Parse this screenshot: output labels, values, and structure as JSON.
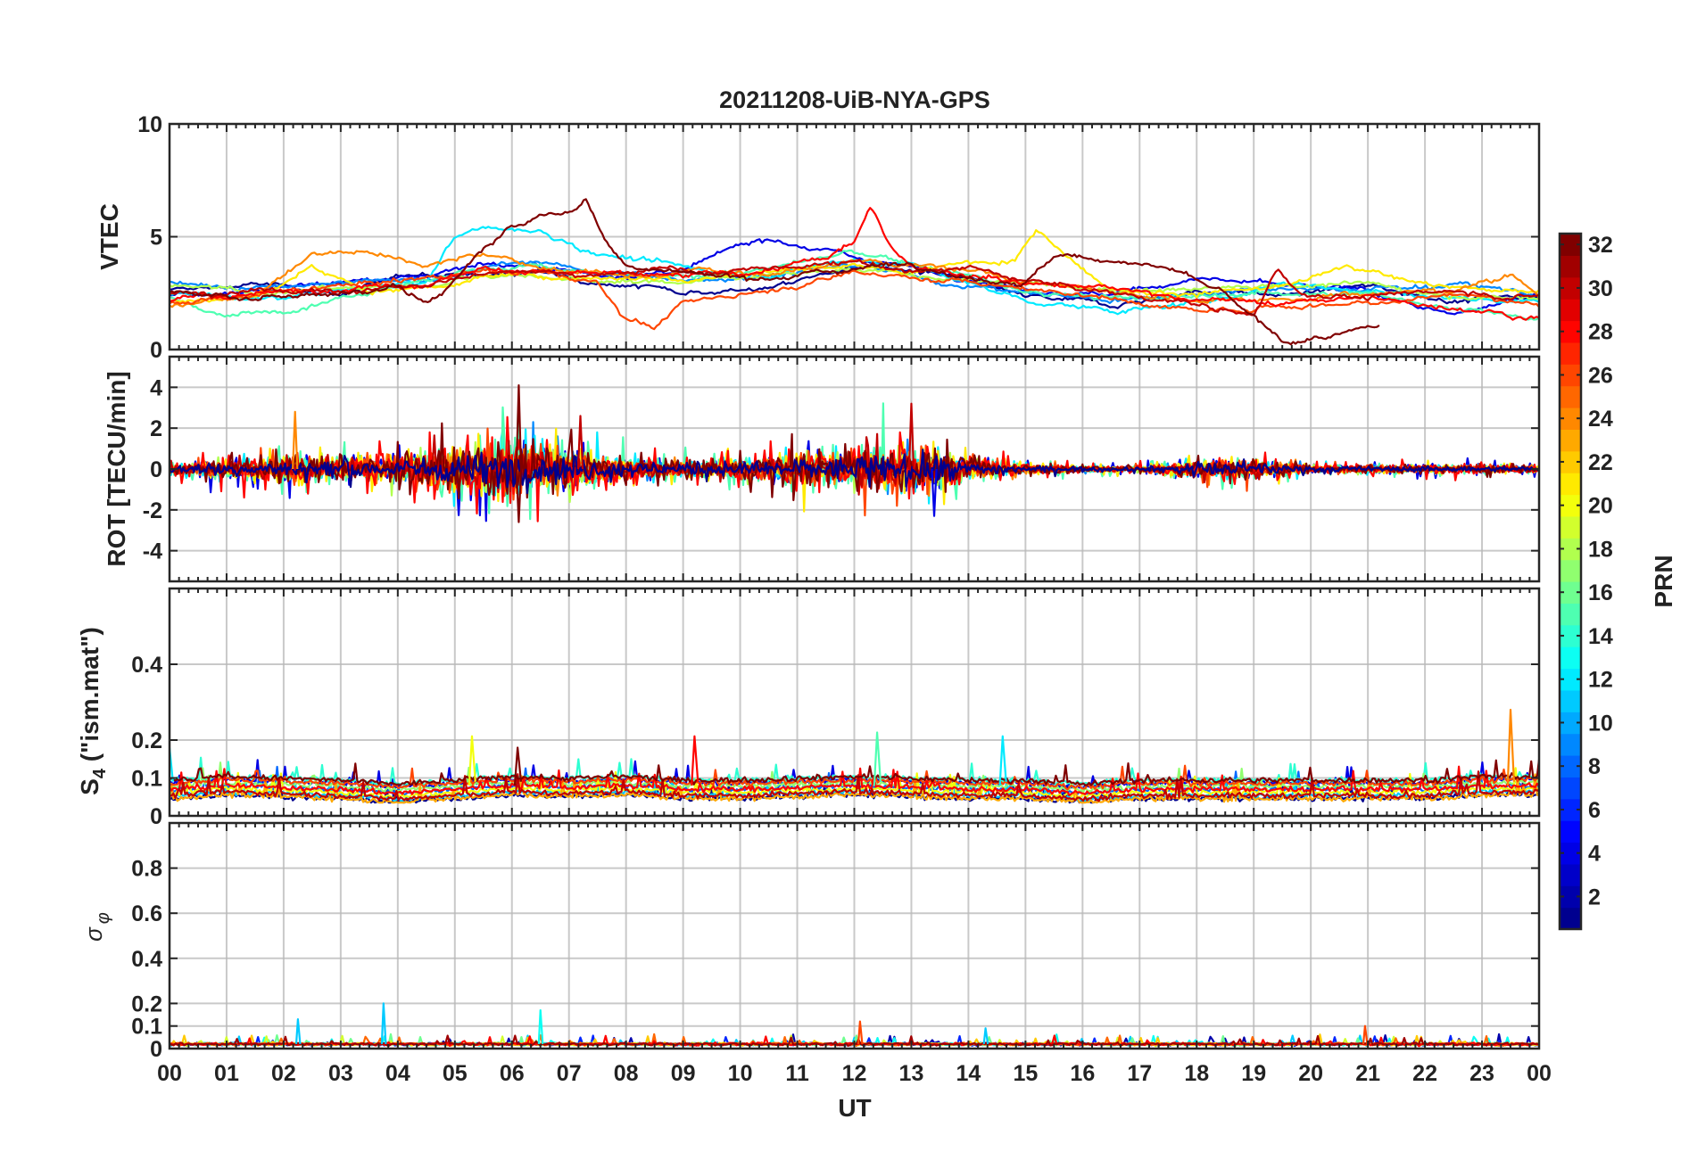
{
  "chart_data": {
    "type": "line",
    "title": "20211208-UiB-NYA-GPS",
    "xlabel": "UT",
    "x_ticks": [
      "00",
      "01",
      "02",
      "03",
      "04",
      "05",
      "06",
      "07",
      "08",
      "09",
      "10",
      "11",
      "12",
      "13",
      "14",
      "15",
      "16",
      "17",
      "18",
      "19",
      "20",
      "21",
      "22",
      "23",
      "00"
    ],
    "xlim_hours": [
      0,
      24
    ],
    "grid": true,
    "colorbar": {
      "label": "PRN",
      "range": [
        1,
        32
      ],
      "tick_labels": [
        "2",
        "4",
        "6",
        "8",
        "10",
        "12",
        "14",
        "16",
        "18",
        "20",
        "22",
        "24",
        "26",
        "28",
        "30",
        "32"
      ],
      "tick_values": [
        2,
        4,
        6,
        8,
        10,
        12,
        14,
        16,
        18,
        20,
        22,
        24,
        26,
        28,
        30,
        32
      ],
      "colormap": "jet",
      "colors": [
        "#00008f",
        "#0000ff",
        "#0080ff",
        "#00ffff",
        "#80ff80",
        "#ffff00",
        "#ff8000",
        "#ff0000",
        "#800000"
      ],
      "placement": "right"
    },
    "panels": [
      {
        "id": "vtec",
        "ylabel": "VTEC",
        "ylim": [
          0,
          10
        ],
        "y_ticks": [
          0,
          5,
          10
        ],
        "y_tick_labels": [
          "0",
          "5",
          "10"
        ],
        "series": [
          {
            "prn": 1,
            "x": [
              0,
              1.5,
              3,
              4.5,
              5.5,
              6.5,
              7.5,
              9,
              10.5,
              12,
              13,
              14,
              15,
              16.5,
              18,
              19.5,
              21,
              22.5,
              24
            ],
            "y": [
              2.6,
              2.9,
              2.5,
              3.4,
              3.3,
              3.4,
              3.1,
              2.6,
              2.7,
              3.7,
              3.5,
              3.0,
              2.3,
              2.0,
              2.6,
              2.4,
              2.8,
              2.2,
              2.4
            ]
          },
          {
            "prn": 4,
            "x": [
              0,
              1.5,
              3,
              4.5,
              5.5,
              6.5,
              7.5,
              9,
              10,
              10.5,
              12,
              13,
              14,
              15,
              16.5,
              18,
              19.5,
              21,
              22.5,
              24
            ],
            "y": [
              2.4,
              2.7,
              3.0,
              3.3,
              3.9,
              3.6,
              3.3,
              3.4,
              4.6,
              5.0,
              4.1,
              3.7,
              3.2,
              2.7,
              2.4,
              3.2,
              2.8,
              2.6,
              1.4,
              2.6
            ]
          },
          {
            "prn": 9,
            "x": [
              0,
              1.5,
              3,
              4.5,
              5.5,
              6.5,
              7.5,
              9,
              10.5,
              12,
              13,
              14,
              15,
              16.5,
              18,
              19.5,
              21,
              22.5,
              24
            ],
            "y": [
              3.0,
              2.7,
              2.9,
              3.1,
              3.6,
              3.9,
              3.4,
              3.1,
              3.3,
              3.7,
              3.3,
              2.8,
              2.5,
              2.2,
              2.5,
              2.6,
              2.7,
              2.9,
              2.4
            ]
          },
          {
            "prn": 12,
            "x": [
              0,
              1.5,
              3,
              4.5,
              5,
              5.5,
              6.5,
              7.5,
              9,
              10.5,
              12,
              13,
              14,
              15,
              16.5,
              18,
              19.5,
              21,
              22.5,
              24
            ],
            "y": [
              2.5,
              2.2,
              2.6,
              3.0,
              5.0,
              5.4,
              5.2,
              4.3,
              3.6,
              3.3,
              4.0,
              3.8,
              2.9,
              2.2,
              1.7,
              2.0,
              3.0,
              2.6,
              2.3,
              2.2
            ]
          },
          {
            "prn": 15,
            "x": [
              0,
              1,
              2,
              3,
              4.5,
              5.5,
              6.5,
              7.5,
              9,
              10.5,
              12,
              13,
              14,
              15,
              16.5,
              18,
              19.5,
              21,
              22.5,
              24
            ],
            "y": [
              2.3,
              1.4,
              1.8,
              2.4,
              3.1,
              3.6,
              3.7,
              3.3,
              3.2,
              3.6,
              4.3,
              3.8,
              3.3,
              2.5,
              2.3,
              2.3,
              2.6,
              2.4,
              1.9,
              1.3
            ]
          },
          {
            "prn": 18,
            "x": [
              0,
              1.5,
              3,
              4.5,
              5.5,
              6.5,
              7.5,
              9,
              10.5,
              12,
              13,
              14,
              15,
              16.5,
              18,
              19.5,
              21,
              22.5,
              24
            ],
            "y": [
              2.8,
              2.6,
              2.7,
              2.9,
              3.3,
              3.2,
              3.0,
              3.0,
              3.4,
              3.6,
              3.2,
              3.0,
              2.9,
              2.6,
              2.7,
              2.9,
              2.9,
              2.4,
              2.3
            ]
          },
          {
            "prn": 21,
            "x": [
              0,
              1.5,
              2.5,
              3.5,
              4.5,
              5.5,
              6.5,
              7.5,
              9,
              10.5,
              12,
              13,
              14,
              14.8,
              15.2,
              16.5,
              18,
              19.5,
              20.5,
              22.5,
              24
            ],
            "y": [
              2.2,
              2.3,
              3.6,
              2.6,
              2.8,
              3.2,
              3.3,
              3.2,
              3.2,
              3.5,
              3.7,
              3.4,
              3.8,
              4.1,
              5.3,
              2.7,
              2.5,
              2.7,
              3.6,
              2.8,
              2.5
            ]
          },
          {
            "prn": 24,
            "x": [
              0,
              1.5,
              2.5,
              3.5,
              4.5,
              5.5,
              6.5,
              7.5,
              8.5,
              9.5,
              10.5,
              12,
              13,
              14,
              15,
              16.5,
              18,
              19.5,
              21,
              22.5,
              23.5,
              24
            ],
            "y": [
              1.9,
              2.5,
              4.3,
              4.4,
              3.7,
              4.3,
              3.6,
              3.4,
              3.3,
              3.5,
              3.4,
              4.0,
              3.7,
              3.6,
              3.0,
              2.6,
              2.2,
              2.3,
              2.5,
              2.6,
              3.4,
              2.4
            ]
          },
          {
            "prn": 26,
            "x": [
              0,
              1.5,
              3,
              4.5,
              5.5,
              6.5,
              7.5,
              7.9,
              8.5,
              9,
              10.5,
              12,
              13,
              14,
              15,
              16.5,
              18,
              19.5,
              21,
              22.5,
              24
            ],
            "y": [
              2.0,
              2.4,
              2.8,
              3.2,
              3.5,
              3.4,
              3.0,
              1.6,
              1.0,
              2.1,
              2.6,
              3.5,
              3.2,
              3.0,
              2.7,
              2.3,
              1.7,
              1.9,
              2.1,
              2.5,
              2.0
            ]
          },
          {
            "prn": 28,
            "x": [
              0,
              1.5,
              3,
              4.5,
              5.5,
              6.5,
              7.5,
              9,
              10.5,
              11.5,
              12,
              12.3,
              12.6,
              13,
              14,
              15,
              16.5,
              18,
              19.5,
              21,
              22.5,
              24
            ],
            "y": [
              2.1,
              2.5,
              2.7,
              3.0,
              3.6,
              3.5,
              3.3,
              3.2,
              3.5,
              4.0,
              4.8,
              6.3,
              4.7,
              3.8,
              3.4,
              3.0,
              2.7,
              2.3,
              2.0,
              2.3,
              1.9,
              1.5
            ]
          },
          {
            "prn": 30,
            "x": [
              0,
              1.5,
              3,
              4.5,
              5.5,
              6.5,
              7.5,
              8.5,
              9.5,
              10.5,
              12,
              13,
              14,
              15,
              16.5,
              18,
              19,
              19.4,
              19.8,
              21,
              22.5,
              24
            ],
            "y": [
              2.4,
              2.6,
              2.6,
              2.8,
              3.4,
              3.6,
              3.3,
              3.6,
              3.4,
              3.6,
              3.8,
              3.5,
              3.6,
              3.1,
              2.5,
              2.0,
              1.4,
              3.6,
              2.5,
              2.3,
              2.6,
              2.3
            ]
          },
          {
            "prn": 32,
            "x": [
              0,
              1.5,
              3,
              4,
              4.5,
              5,
              5.5,
              6,
              6.5,
              7,
              7.3,
              7.6,
              8,
              9,
              10,
              11,
              12,
              13,
              14,
              15,
              15.5,
              16.5,
              17.5,
              18.5,
              19.5,
              20.5,
              21.2
            ],
            "y": [
              2.6,
              2.3,
              2.5,
              2.8,
              2.0,
              3.0,
              4.5,
              5.4,
              5.9,
              6.1,
              6.7,
              5.0,
              3.7,
              3.4,
              3.2,
              3.3,
              3.6,
              3.9,
              3.2,
              3.0,
              4.1,
              4.0,
              3.6,
              2.4,
              0.3,
              0.6,
              1.0
            ]
          }
        ]
      },
      {
        "id": "rot",
        "ylabel": "ROT [TECU/min]",
        "ylim": [
          -5.5,
          5.5
        ],
        "y_ticks": [
          -4,
          -2,
          0,
          2,
          4
        ],
        "y_tick_labels": [
          "-4",
          "-2",
          "0",
          "2",
          "4"
        ],
        "activity": {
          "hours": [
            0,
            1,
            2,
            3,
            4,
            5,
            6,
            7,
            8,
            9,
            10,
            11,
            12,
            13,
            14,
            15,
            16,
            17,
            18,
            19,
            20,
            21,
            22,
            23,
            24
          ],
          "amplitude": [
            0.5,
            0.8,
            1.2,
            1.0,
            1.3,
            2.0,
            2.6,
            2.0,
            1.0,
            0.8,
            0.9,
            1.5,
            1.8,
            2.0,
            1.0,
            0.5,
            0.25,
            0.3,
            0.9,
            0.9,
            0.4,
            0.35,
            0.35,
            0.35,
            0.3
          ],
          "peaks": [
            {
              "x": 6.12,
              "y": 4.1,
              "prn": 32
            },
            {
              "x": 6.12,
              "y": -2.6,
              "prn": 32
            },
            {
              "x": 13.0,
              "y": 3.2,
              "prn": 30
            },
            {
              "x": 13.4,
              "y": -2.3,
              "prn": 4
            },
            {
              "x": 2.2,
              "y": 2.8,
              "prn": 24
            },
            {
              "x": 7.2,
              "y": 2.6,
              "prn": 30
            }
          ]
        }
      },
      {
        "id": "s4",
        "ylabel_main": "S",
        "ylabel_sub": "4",
        "ylabel_tail": " (\"ism.mat\")",
        "ylim": [
          0,
          0.6
        ],
        "y_ticks": [
          0,
          0.1,
          0.2,
          0.4
        ],
        "y_tick_labels": [
          "0",
          "0.1",
          "0.2",
          "0.4"
        ],
        "activity": {
          "baseline": [
            0.07,
            0.08,
            0.075,
            0.07,
            0.06,
            0.07,
            0.08,
            0.075,
            0.08,
            0.07,
            0.07,
            0.075,
            0.08,
            0.075,
            0.07,
            0.07,
            0.06,
            0.07,
            0.07,
            0.07,
            0.07,
            0.07,
            0.07,
            0.08,
            0.08
          ],
          "peaks": [
            {
              "x": 5.3,
              "y": 0.21,
              "prn": 20
            },
            {
              "x": 9.2,
              "y": 0.21,
              "prn": 28
            },
            {
              "x": 12.4,
              "y": 0.22,
              "prn": 15
            },
            {
              "x": 14.6,
              "y": 0.21,
              "prn": 12
            },
            {
              "x": 23.5,
              "y": 0.28,
              "prn": 24
            },
            {
              "x": 0.0,
              "y": 0.18,
              "prn": 12
            },
            {
              "x": 6.1,
              "y": 0.18,
              "prn": 32
            }
          ]
        }
      },
      {
        "id": "sigma",
        "ylabel": "σ φ",
        "ylim": [
          0,
          1.0
        ],
        "y_ticks": [
          0,
          0.1,
          0.2,
          0.4,
          0.6,
          0.8
        ],
        "y_tick_labels": [
          "0",
          "0.1",
          "0.2",
          "0.4",
          "0.6",
          "0.8"
        ],
        "activity": {
          "baseline": 0.02,
          "peaks": [
            {
              "x": 2.25,
              "y": 0.13,
              "prn": 11
            },
            {
              "x": 3.75,
              "y": 0.2,
              "prn": 11
            },
            {
              "x": 6.5,
              "y": 0.17,
              "prn": 13
            },
            {
              "x": 12.1,
              "y": 0.12,
              "prn": 26
            },
            {
              "x": 20.95,
              "y": 0.1,
              "prn": 26
            },
            {
              "x": 14.3,
              "y": 0.09,
              "prn": 11
            }
          ]
        }
      }
    ]
  }
}
